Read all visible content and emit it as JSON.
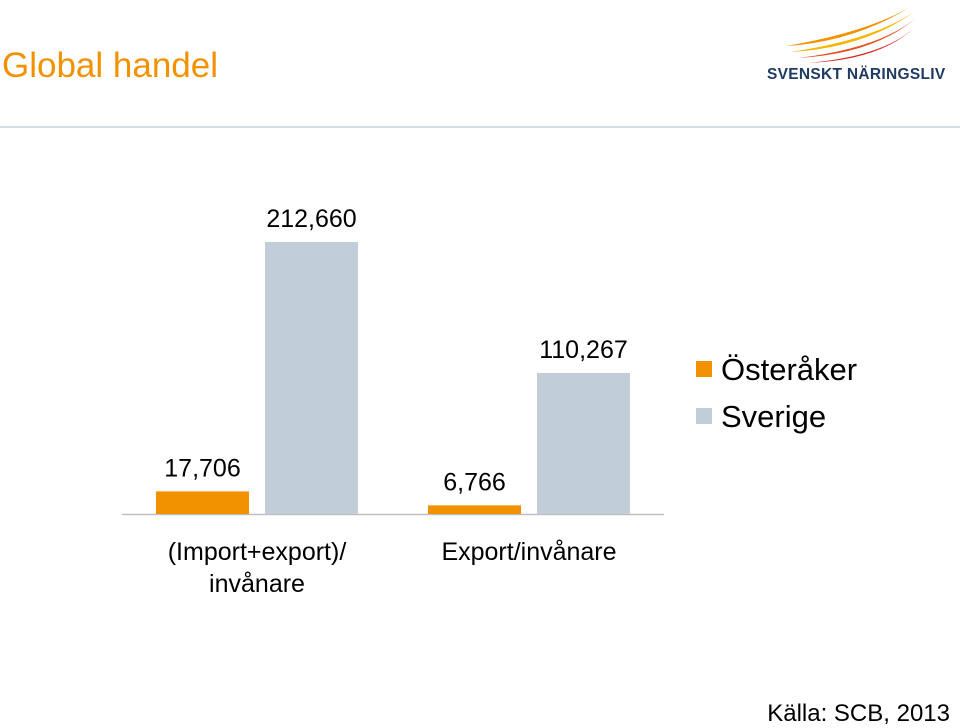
{
  "header": {
    "title": "Global handel",
    "logo_text": "SVENSKT NÄRINGSLIV"
  },
  "colors": {
    "title": "#f39200",
    "osteraker": "#f39200",
    "sverige": "#c1cdd8",
    "baseline": "#bfbfbf",
    "logo_text": "#1f3a63"
  },
  "chart_data": {
    "type": "bar",
    "categories": [
      "(Import+export)/ invånare",
      "Export/invånare"
    ],
    "category_lines": [
      [
        "(Import+export)/",
        "invånare"
      ],
      [
        "Export/invånare"
      ]
    ],
    "series": [
      {
        "name": "Österåker",
        "values": [
          17706,
          6766
        ],
        "labels": [
          "17,706",
          "6,766"
        ],
        "color": "#f39200"
      },
      {
        "name": "Sverige",
        "values": [
          212660,
          110267
        ],
        "labels": [
          "212,660",
          "110,267"
        ],
        "color": "#c1cdd8"
      }
    ],
    "ylim": [
      0,
      212660
    ],
    "grid": false,
    "legend": "right",
    "xlabel": "",
    "ylabel": ""
  },
  "legend": {
    "items": [
      {
        "label": "Österåker",
        "color": "#f39200"
      },
      {
        "label": "Sverige",
        "color": "#c1cdd8"
      }
    ]
  },
  "footer": {
    "source": "Källa: SCB, 2013"
  }
}
